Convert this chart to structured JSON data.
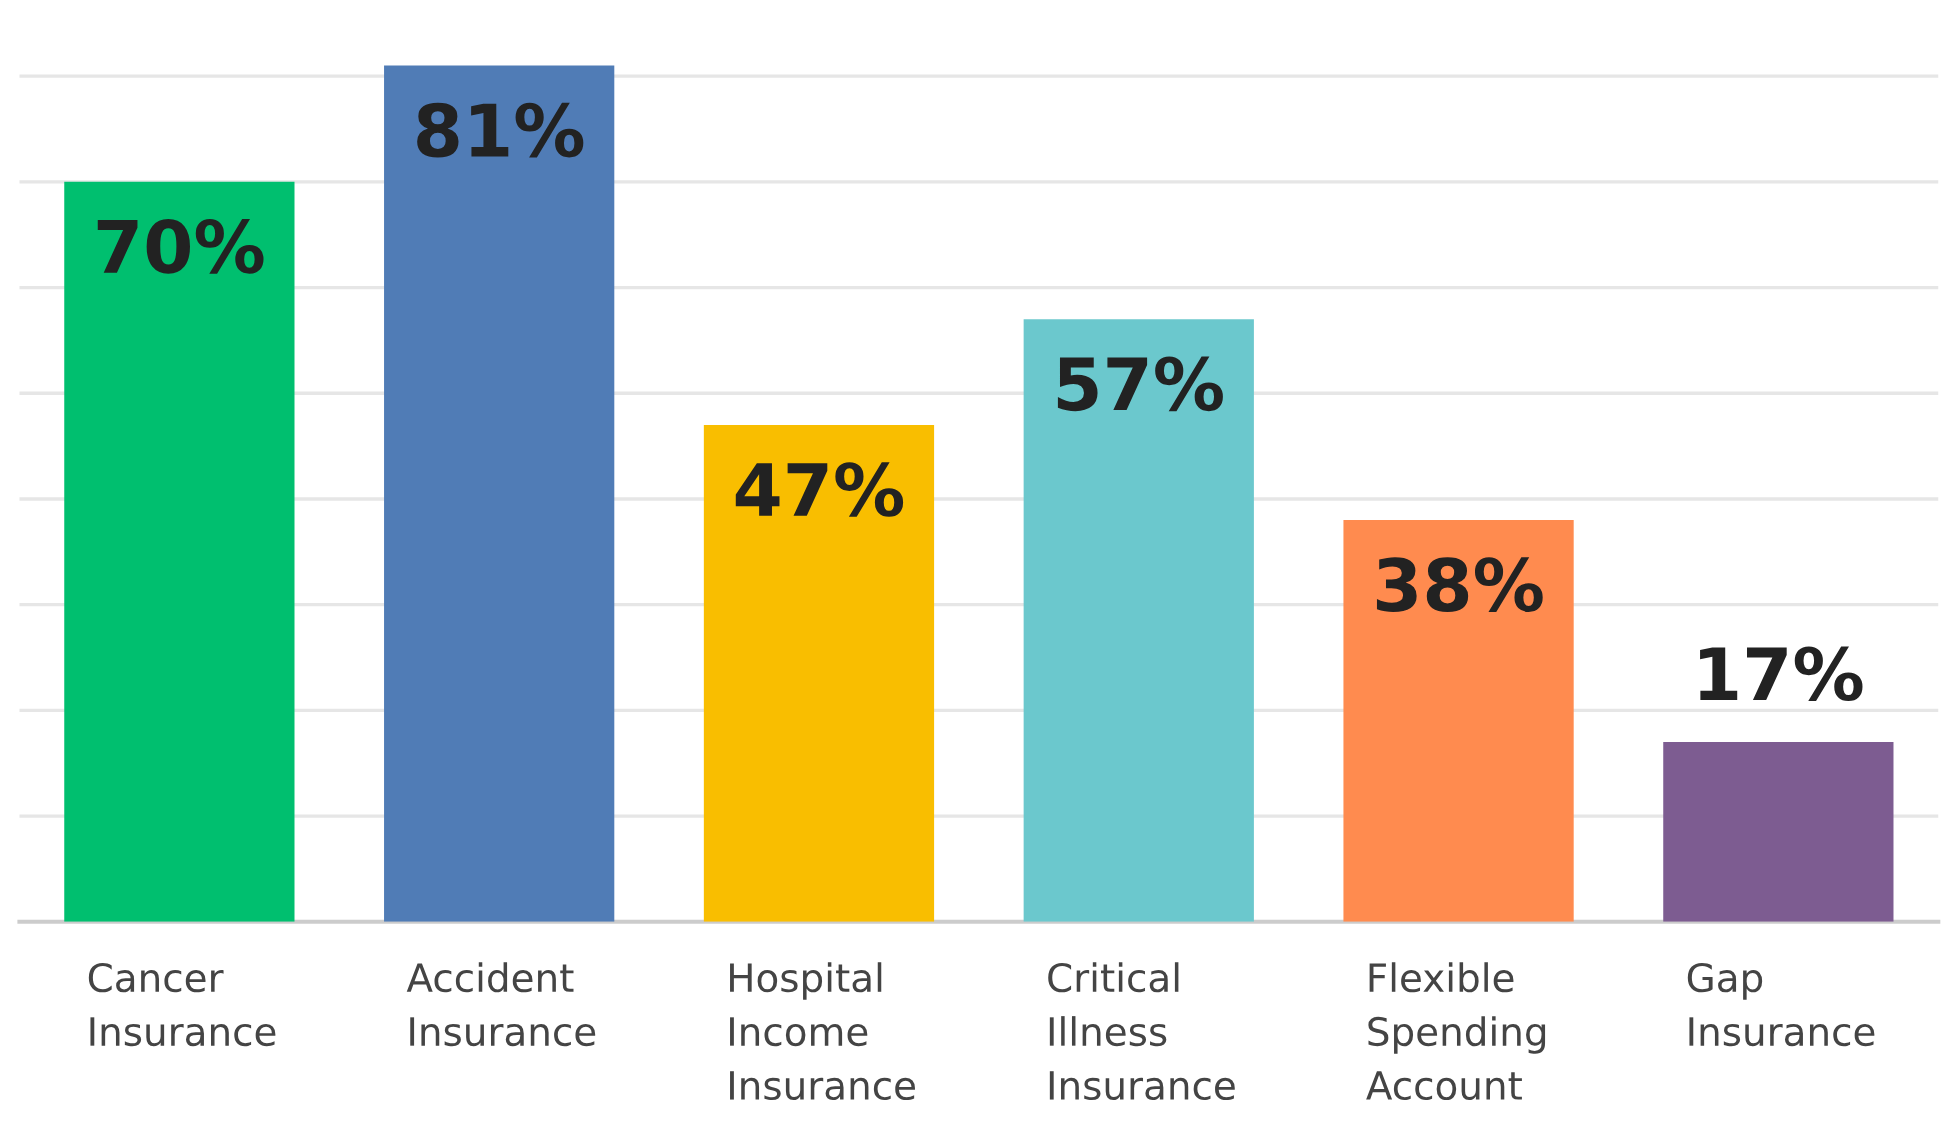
{
  "chart_data": {
    "type": "bar",
    "categories": [
      "Cancer Insurance",
      "Accident Insurance",
      "Hospital Income Insurance",
      "Critical Illness Insurance",
      "Flexible Spending Account",
      "Gap Insurance"
    ],
    "values": [
      70,
      81,
      47,
      57,
      38,
      17
    ],
    "colors": [
      "#00bf6f",
      "#507cb6",
      "#f9be00",
      "#6bc8cd",
      "#ff8b4f",
      "#7d5c91"
    ],
    "value_labels": [
      "70%",
      "81%",
      "47%",
      "57%",
      "38%",
      "17%"
    ],
    "grid": "y",
    "tick_labels": "x"
  }
}
